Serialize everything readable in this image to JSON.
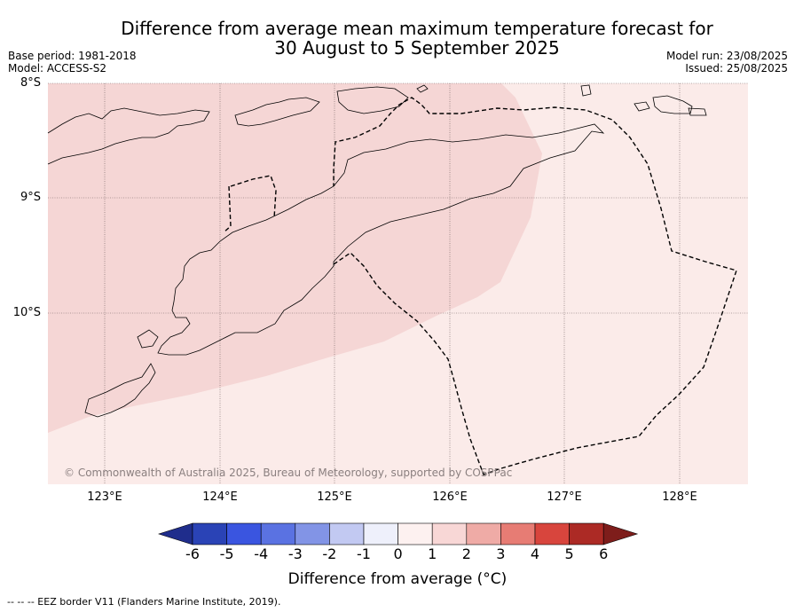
{
  "title_line1": "Difference from average mean maximum temperature forecast for",
  "title_line2": "30 August to 5 September 2025",
  "base_period": "Base period: 1981-2018",
  "model": "Model: ACCESS-S2",
  "model_run": "Model run: 23/08/2025",
  "issued": "Issued: 25/08/2025",
  "lat_labels": [
    "8°S",
    "9°S",
    "10°S"
  ],
  "lon_labels": [
    "123°E",
    "124°E",
    "125°E",
    "126°E",
    "127°E",
    "128°E"
  ],
  "credit": "© Commonwealth of Australia 2025, Bureau of Meteorology, supported by COSPPac",
  "colorbar": {
    "title": "Difference from average (°C)",
    "ticks": [
      "-6",
      "-5",
      "-4",
      "-3",
      "-2",
      "-1",
      "0",
      "1",
      "2",
      "3",
      "4",
      "5",
      "6"
    ],
    "colors": [
      "#1f2d8c",
      "#2a43b6",
      "#3a55e0",
      "#5a72e2",
      "#8294e6",
      "#c2c9f2",
      "#eef0fb",
      "#fdf1f0",
      "#f8d7d6",
      "#efaba6",
      "#e77c74",
      "#d8453d",
      "#ac2a25",
      "#7e1d1b"
    ]
  },
  "map": {
    "fill_colors": {
      "anomaly_0_to_1": "#fbebe9",
      "anomaly_1_to_2": "#f5d6d5"
    }
  },
  "footnote": "--  --  -- EEZ border V11 (Flanders Marine Institute, 2019)."
}
